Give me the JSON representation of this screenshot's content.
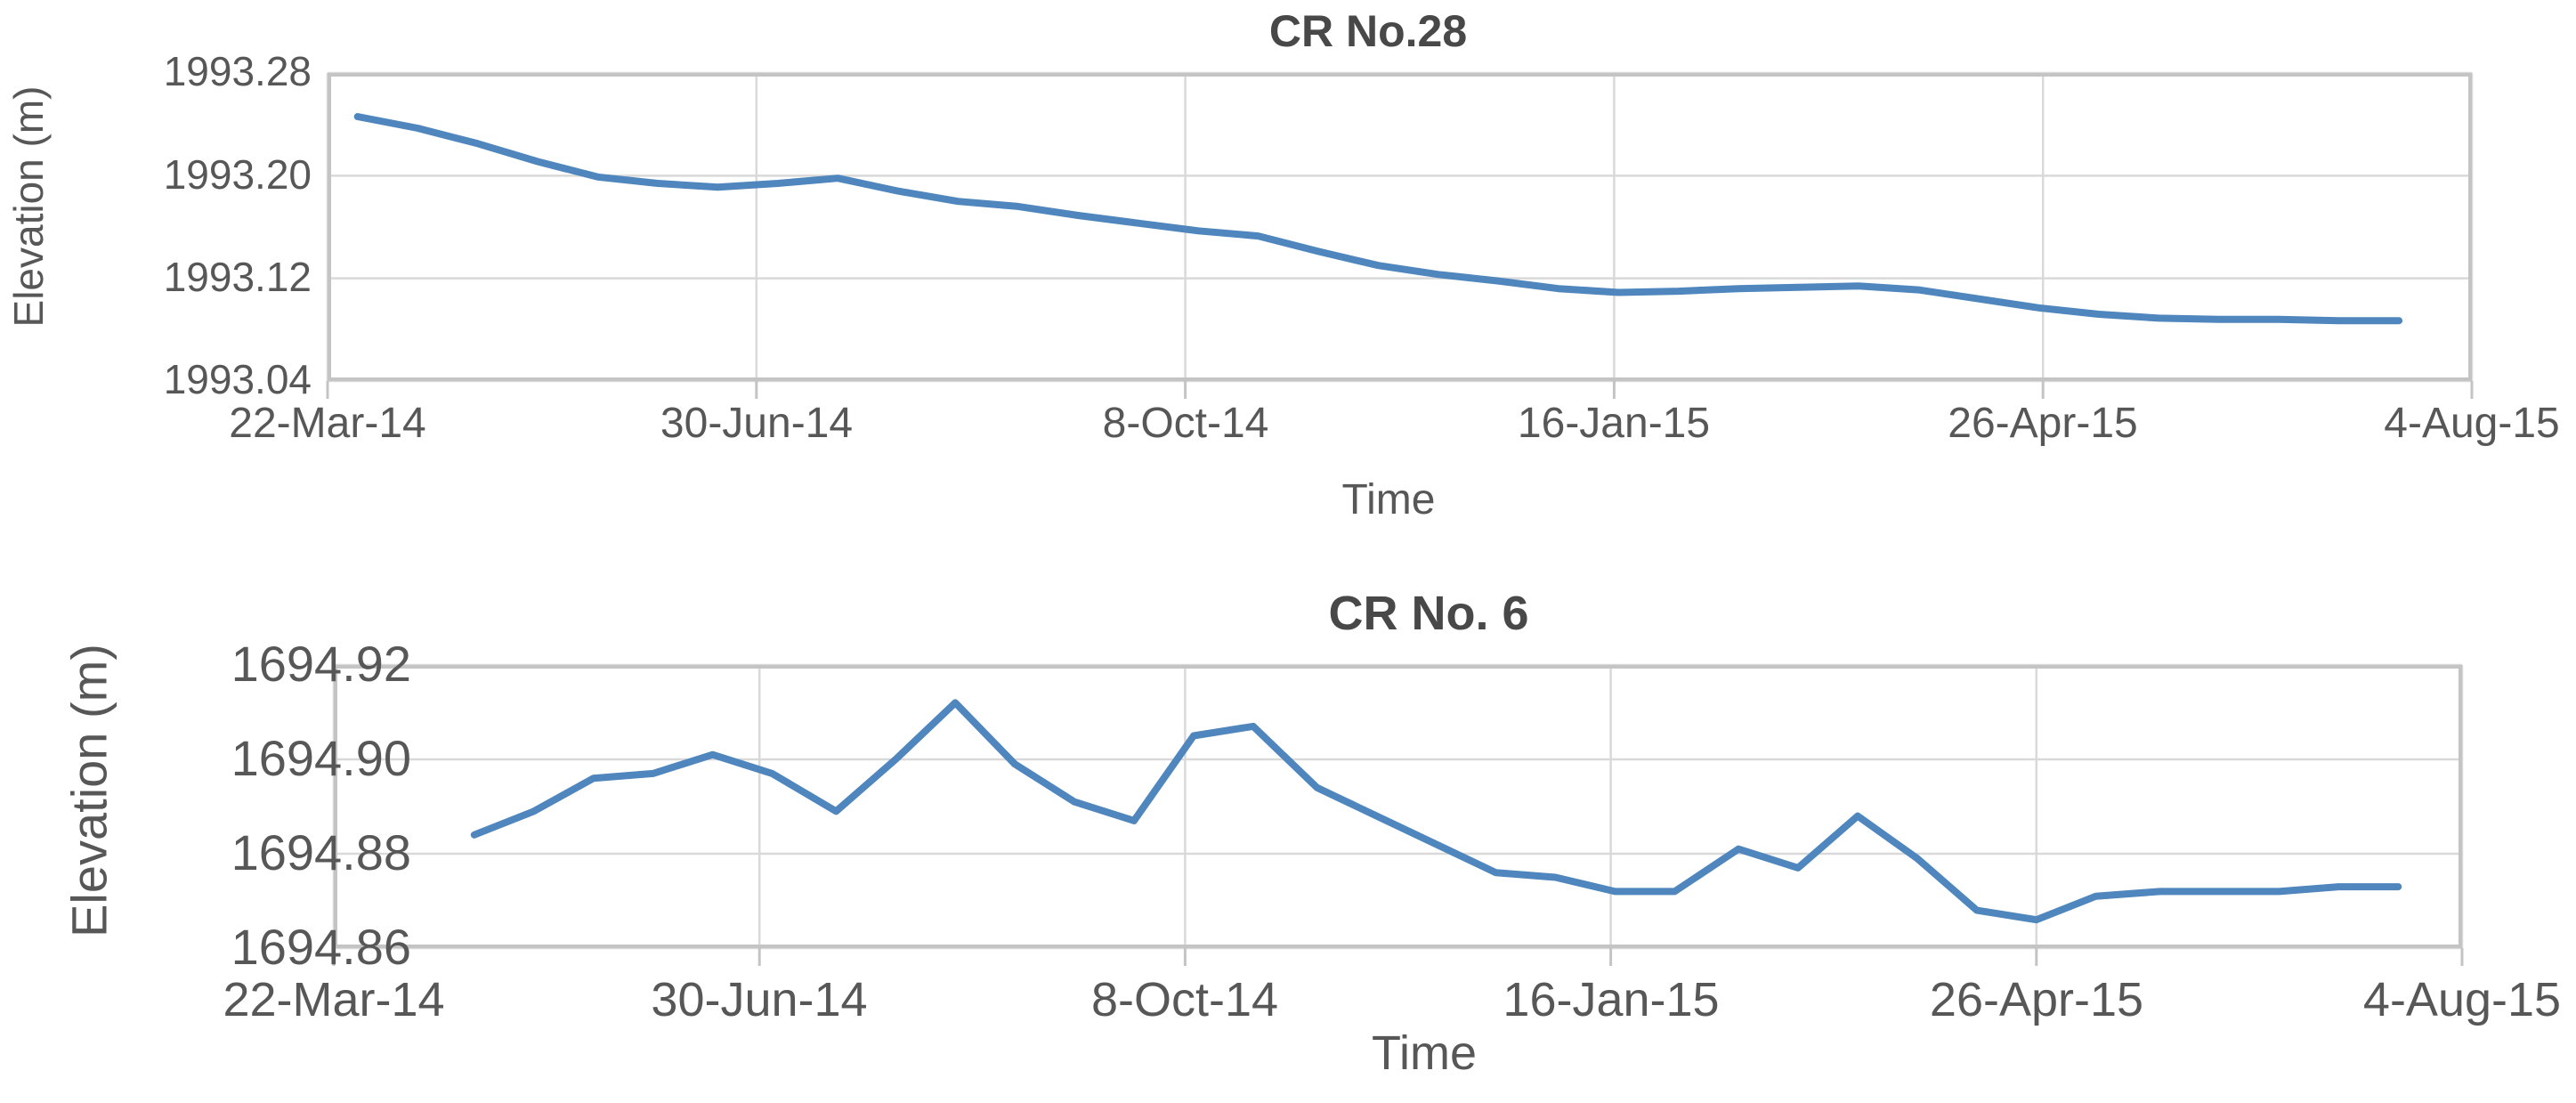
{
  "page_background": "#ffffff",
  "chart_data": [
    {
      "type": "line",
      "title": "CR No.28",
      "xlabel": "Time",
      "ylabel": "Elevation (m)",
      "x_tick_labels": [
        "22-Mar-14",
        "30-Jun-14",
        "8-Oct-14",
        "16-Jan-15",
        "26-Apr-15",
        "4-Aug-15"
      ],
      "x_tick_days": [
        0,
        100,
        200,
        300,
        400,
        500
      ],
      "x_range_days": [
        0,
        500
      ],
      "y_tick_labels": [
        "1993.28",
        "1993.20",
        "1993.12",
        "1993.04"
      ],
      "y_ticks": [
        1993.28,
        1993.2,
        1993.12,
        1993.04
      ],
      "ylim": [
        1993.04,
        1993.28
      ],
      "grid": true,
      "legend": "none",
      "line_color": "#4e86bd",
      "series": [
        {
          "name": "CR No.28 elevation",
          "x_days": [
            7,
            21,
            35,
            49,
            63,
            77,
            91,
            105,
            119,
            133,
            147,
            161,
            175,
            189,
            203,
            217,
            231,
            245,
            259,
            273,
            287,
            301,
            315,
            329,
            343,
            357,
            371,
            385,
            399,
            413,
            427,
            441,
            455,
            469,
            483
          ],
          "values": [
            1993.246,
            1993.237,
            1993.225,
            1993.211,
            1993.199,
            1993.194,
            1993.191,
            1993.194,
            1993.198,
            1993.188,
            1993.18,
            1993.176,
            1993.169,
            1993.163,
            1993.157,
            1993.153,
            1993.141,
            1993.13,
            1993.123,
            1993.118,
            1993.112,
            1993.109,
            1993.11,
            1993.112,
            1993.113,
            1993.114,
            1993.111,
            1993.104,
            1993.097,
            1993.092,
            1993.089,
            1993.088,
            1993.088,
            1993.087,
            1993.087
          ]
        }
      ]
    },
    {
      "type": "line",
      "title": "CR No. 6",
      "xlabel": "Time",
      "ylabel": "Elevation (m)",
      "x_tick_labels": [
        "22-Mar-14",
        "30-Jun-14",
        "8-Oct-14",
        "16-Jan-15",
        "26-Apr-15",
        "4-Aug-15"
      ],
      "x_tick_days": [
        0,
        100,
        200,
        300,
        400,
        500
      ],
      "x_range_days": [
        0,
        500
      ],
      "y_tick_labels": [
        "1694.92",
        "1694.90",
        "1694.88",
        "1694.86"
      ],
      "y_ticks": [
        1694.92,
        1694.9,
        1694.88,
        1694.86
      ],
      "ylim": [
        1694.86,
        1694.92
      ],
      "grid": true,
      "legend": "none",
      "line_color": "#4e86bd",
      "series": [
        {
          "name": "CR No. 6 elevation",
          "x_days": [
            33,
            47,
            61,
            75,
            89,
            103,
            118,
            132,
            146,
            160,
            174,
            188,
            202,
            216,
            231,
            245,
            259,
            273,
            287,
            301,
            315,
            330,
            344,
            358,
            372,
            386,
            400,
            414,
            429,
            443,
            457,
            471,
            485
          ],
          "values": [
            1694.884,
            1694.889,
            1694.896,
            1694.897,
            1694.901,
            1694.897,
            1694.889,
            1694.9,
            1694.912,
            1694.899,
            1694.891,
            1694.887,
            1694.905,
            1694.907,
            1694.894,
            1694.888,
            1694.882,
            1694.876,
            1694.875,
            1694.872,
            1694.872,
            1694.881,
            1694.877,
            1694.888,
            1694.879,
            1694.868,
            1694.866,
            1694.871,
            1694.872,
            1694.872,
            1694.872,
            1694.873,
            1694.873
          ]
        }
      ]
    }
  ],
  "style": {
    "gridline_color": "#d9d9d9",
    "border_color": "#c4c4c4",
    "label_color": "#575757",
    "title_color": "#484848"
  }
}
